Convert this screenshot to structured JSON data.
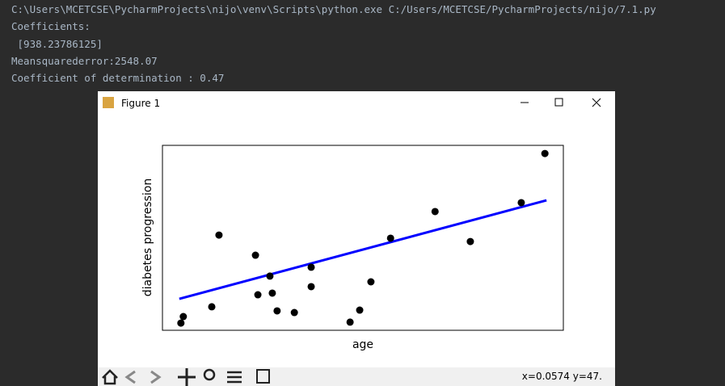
{
  "console": {
    "lines": [
      "C:\\Users\\MCETCSE\\PycharmProjects\\nijo\\venv\\Scripts\\python.exe C:/Users/MCETCSE/PycharmProjects/nijo/7.1.py",
      "Coefficients:",
      " [938.23786125]",
      "Meansquarederror:2548.07",
      "Coefficient of determination : 0.47"
    ]
  },
  "window": {
    "title": "Figure 1",
    "status": "x=0.0574 y=47."
  },
  "chart_data": {
    "type": "scatter",
    "xlabel": "age",
    "ylabel": "diabetes progression",
    "xlim": [
      0,
      100
    ],
    "ylim": [
      0,
      100
    ],
    "points": {
      "color": "#000000",
      "x": [
        4.6,
        5.2,
        12.3,
        14.1,
        23.2,
        23.8,
        26.8,
        27.4,
        28.6,
        32.9,
        37.1,
        37.1,
        46.8,
        49.2,
        52.0,
        56.9,
        68.0,
        76.8,
        89.5,
        95.4
      ],
      "y": [
        3.9,
        7.4,
        12.7,
        51.5,
        40.6,
        19.2,
        29.3,
        20.1,
        10.5,
        9.6,
        34.1,
        23.6,
        4.4,
        10.9,
        26.2,
        49.8,
        64.2,
        48.0,
        69.0,
        95.6
      ]
    },
    "line": {
      "color": "#0000ff",
      "x": [
        4.2,
        95.8
      ],
      "y": [
        17.0,
        70.3
      ]
    }
  }
}
